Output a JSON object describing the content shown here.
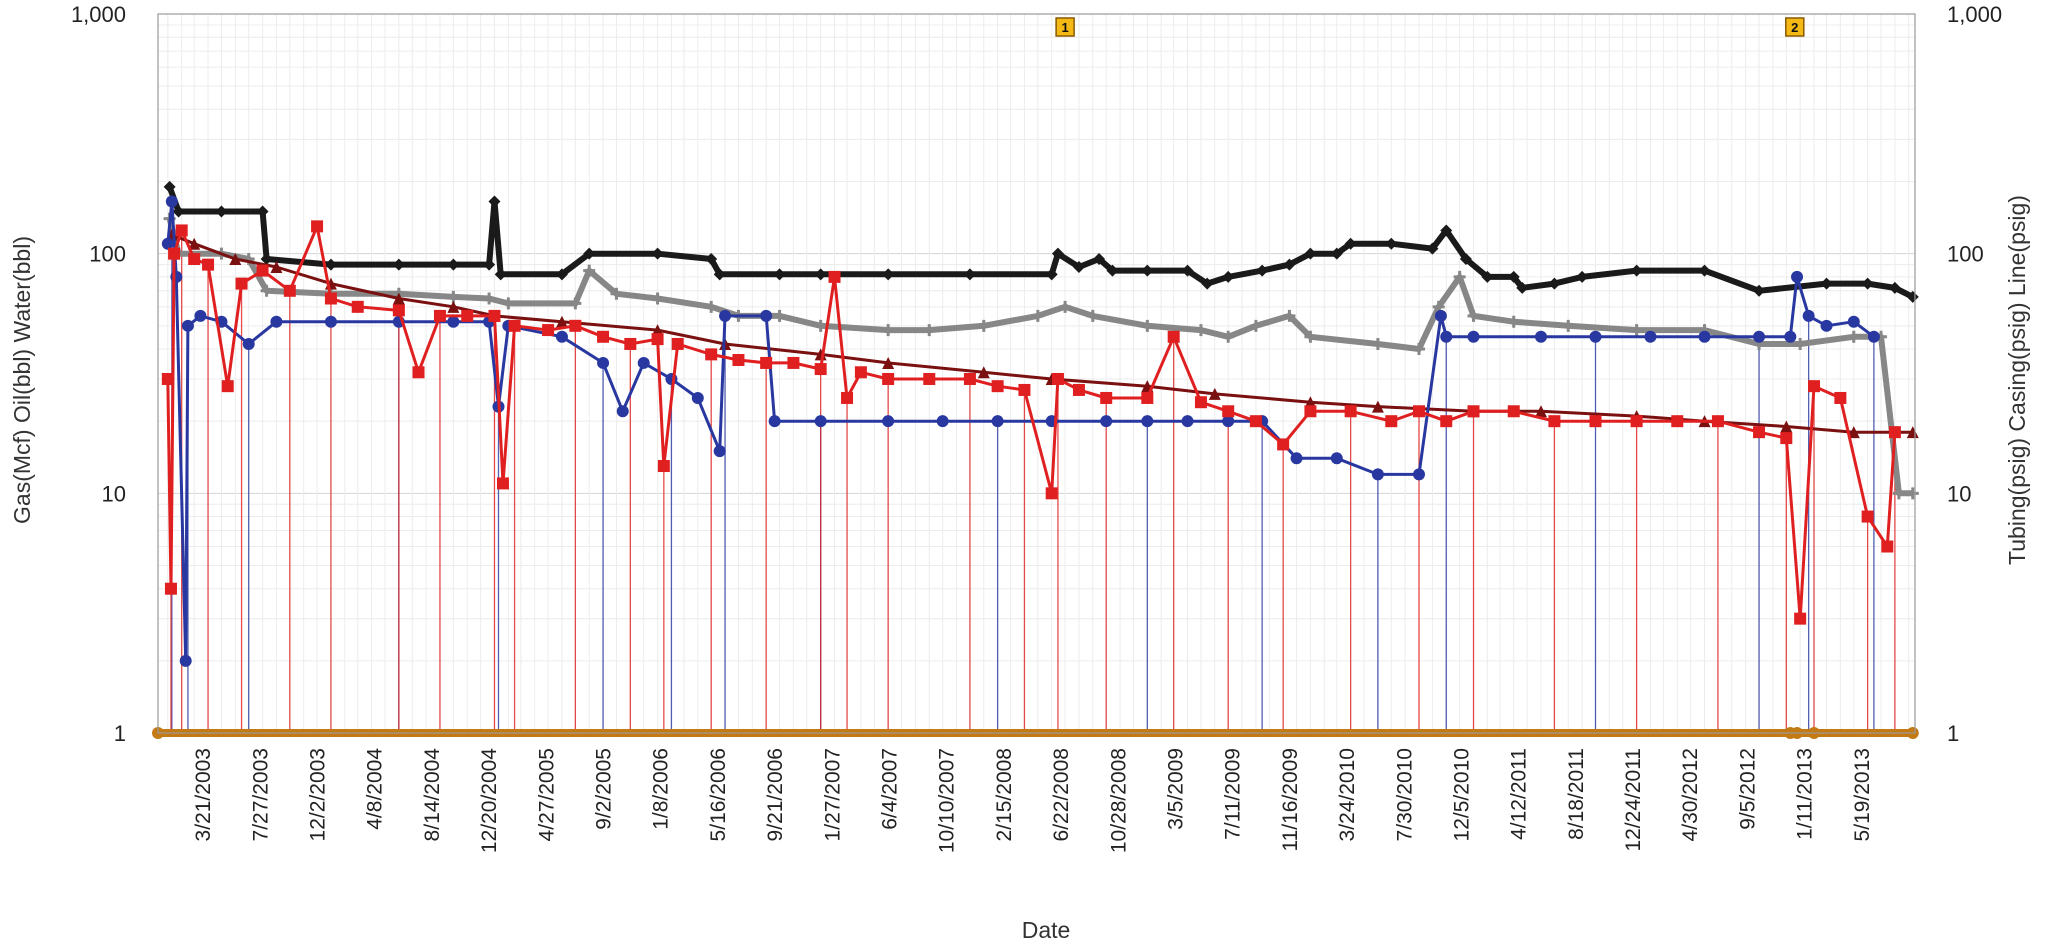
{
  "chart_data": {
    "type": "line",
    "title": "",
    "xlabel": "Date",
    "ylabel_left": "Gas(Mcf) Oil(bbl) Water(bbl)",
    "ylabel_right": "Tubing(psig) Casing(psig) Line(psig)",
    "yscale": "log",
    "ylim": [
      1,
      1000
    ],
    "xlim": [
      "2002-12-10",
      "2013-09-15"
    ],
    "grid": true,
    "y_ticks_left": [
      "1,000",
      "100",
      "10",
      "1"
    ],
    "y_ticks_right": [
      "1,000",
      "100",
      "10",
      "1"
    ],
    "x_ticks": [
      "3/21/2003",
      "7/27/2003",
      "12/2/2003",
      "4/8/2004",
      "8/14/2004",
      "12/20/2004",
      "4/27/2005",
      "9/2/2005",
      "1/8/2006",
      "5/16/2006",
      "9/21/2006",
      "1/27/2007",
      "6/4/2007",
      "10/10/2007",
      "2/15/2008",
      "6/22/2008",
      "10/28/2008",
      "3/5/2009",
      "7/11/2009",
      "11/16/2009",
      "3/24/2010",
      "7/30/2010",
      "12/5/2010",
      "4/12/2011",
      "8/18/2011",
      "12/24/2011",
      "4/30/2012",
      "9/5/2012",
      "1/11/2013",
      "5/19/2013"
    ],
    "annotations": [
      {
        "label": "1",
        "x": "2008-07-01"
      },
      {
        "label": "2",
        "x": "2012-12-20"
      }
    ],
    "series": [
      {
        "key": "tubing",
        "color": "#1a1a1a",
        "marker": "diamond",
        "points": [
          [
            "2003-01-05",
            190
          ],
          [
            "2003-01-25",
            150
          ],
          [
            "2003-05-01",
            150
          ],
          [
            "2003-08-01",
            150
          ],
          [
            "2003-08-10",
            95
          ],
          [
            "2004-01-01",
            90
          ],
          [
            "2004-06-01",
            90
          ],
          [
            "2004-10-01",
            90
          ],
          [
            "2004-12-20",
            90
          ],
          [
            "2005-01-01",
            165
          ],
          [
            "2005-01-15",
            82
          ],
          [
            "2005-06-01",
            82
          ],
          [
            "2005-08-01",
            100
          ],
          [
            "2006-01-01",
            100
          ],
          [
            "2006-05-01",
            95
          ],
          [
            "2006-05-20",
            82
          ],
          [
            "2006-10-01",
            82
          ],
          [
            "2007-01-01",
            82
          ],
          [
            "2007-06-01",
            82
          ],
          [
            "2007-12-01",
            82
          ],
          [
            "2008-06-01",
            82
          ],
          [
            "2008-06-15",
            100
          ],
          [
            "2008-08-01",
            88
          ],
          [
            "2008-09-15",
            95
          ],
          [
            "2008-10-15",
            85
          ],
          [
            "2009-01-01",
            85
          ],
          [
            "2009-04-01",
            85
          ],
          [
            "2009-05-15",
            75
          ],
          [
            "2009-07-01",
            80
          ],
          [
            "2009-09-15",
            85
          ],
          [
            "2009-11-15",
            90
          ],
          [
            "2010-01-01",
            100
          ],
          [
            "2010-03-01",
            100
          ],
          [
            "2010-04-01",
            110
          ],
          [
            "2010-07-01",
            110
          ],
          [
            "2010-10-01",
            105
          ],
          [
            "2010-11-01",
            125
          ],
          [
            "2010-12-15",
            95
          ],
          [
            "2011-02-01",
            80
          ],
          [
            "2011-04-01",
            80
          ],
          [
            "2011-04-20",
            72
          ],
          [
            "2011-07-01",
            75
          ],
          [
            "2011-09-01",
            80
          ],
          [
            "2012-01-01",
            85
          ],
          [
            "2012-06-01",
            85
          ],
          [
            "2012-10-01",
            70
          ],
          [
            "2013-03-01",
            75
          ],
          [
            "2013-06-01",
            75
          ],
          [
            "2013-08-01",
            72
          ],
          [
            "2013-09-10",
            66
          ]
        ]
      },
      {
        "key": "casing",
        "color": "#878787",
        "marker": "cross",
        "points": [
          [
            "2003-01-05",
            140
          ],
          [
            "2003-01-25",
            100
          ],
          [
            "2003-05-01",
            100
          ],
          [
            "2003-07-01",
            95
          ],
          [
            "2003-08-10",
            70
          ],
          [
            "2004-01-01",
            68
          ],
          [
            "2004-06-01",
            68
          ],
          [
            "2004-10-01",
            66
          ],
          [
            "2004-12-20",
            65
          ],
          [
            "2005-02-01",
            62
          ],
          [
            "2005-07-01",
            62
          ],
          [
            "2005-08-01",
            85
          ],
          [
            "2005-10-01",
            68
          ],
          [
            "2006-01-01",
            65
          ],
          [
            "2006-05-01",
            60
          ],
          [
            "2006-07-01",
            55
          ],
          [
            "2006-10-01",
            55
          ],
          [
            "2007-01-01",
            50
          ],
          [
            "2007-06-01",
            48
          ],
          [
            "2007-09-01",
            48
          ],
          [
            "2008-01-01",
            50
          ],
          [
            "2008-05-01",
            55
          ],
          [
            "2008-07-01",
            60
          ],
          [
            "2008-09-01",
            55
          ],
          [
            "2009-01-01",
            50
          ],
          [
            "2009-05-01",
            48
          ],
          [
            "2009-07-01",
            45
          ],
          [
            "2009-09-01",
            50
          ],
          [
            "2009-11-15",
            55
          ],
          [
            "2010-01-01",
            45
          ],
          [
            "2010-06-01",
            42
          ],
          [
            "2010-09-01",
            40
          ],
          [
            "2010-10-15",
            60
          ],
          [
            "2010-12-01",
            80
          ],
          [
            "2011-01-01",
            55
          ],
          [
            "2011-04-01",
            52
          ],
          [
            "2011-08-01",
            50
          ],
          [
            "2012-01-01",
            48
          ],
          [
            "2012-06-01",
            48
          ],
          [
            "2012-10-01",
            42
          ],
          [
            "2013-01-01",
            42
          ],
          [
            "2013-05-01",
            45
          ],
          [
            "2013-07-01",
            45
          ],
          [
            "2013-08-10",
            10
          ],
          [
            "2013-09-10",
            10
          ]
        ]
      },
      {
        "key": "line",
        "color": "#7a1010",
        "marker": "triangle",
        "points": [
          [
            "2003-01-10",
            120
          ],
          [
            "2003-03-01",
            110
          ],
          [
            "2003-06-01",
            95
          ],
          [
            "2003-09-01",
            88
          ],
          [
            "2004-01-01",
            75
          ],
          [
            "2004-06-01",
            65
          ],
          [
            "2004-10-01",
            60
          ],
          [
            "2005-01-01",
            55
          ],
          [
            "2005-06-01",
            52
          ],
          [
            "2006-01-01",
            48
          ],
          [
            "2006-06-01",
            42
          ],
          [
            "2007-01-01",
            38
          ],
          [
            "2007-06-01",
            35
          ],
          [
            "2008-01-01",
            32
          ],
          [
            "2008-06-01",
            30
          ],
          [
            "2009-01-01",
            28
          ],
          [
            "2009-06-01",
            26
          ],
          [
            "2010-01-01",
            24
          ],
          [
            "2010-06-01",
            23
          ],
          [
            "2011-01-01",
            22
          ],
          [
            "2011-06-01",
            22
          ],
          [
            "2012-01-01",
            21
          ],
          [
            "2012-06-01",
            20
          ],
          [
            "2012-12-01",
            19
          ],
          [
            "2013-05-01",
            18
          ],
          [
            "2013-09-10",
            18
          ]
        ]
      },
      {
        "key": "water",
        "color": "#c47a14",
        "marker": "circle",
        "points": [
          [
            "2002-12-10",
            1
          ],
          [
            "2012-12-10",
            1
          ],
          [
            "2012-12-25",
            1
          ],
          [
            "2013-02-01",
            1
          ],
          [
            "2013-09-10",
            1
          ]
        ]
      },
      {
        "key": "oil",
        "color": "#2838a0",
        "marker": "circle",
        "points": [
          [
            "2003-01-01",
            110
          ],
          [
            "2003-01-10",
            165
          ],
          [
            "2003-01-20",
            80
          ],
          [
            "2003-02-10",
            2
          ],
          [
            "2003-02-15",
            50
          ],
          [
            "2003-03-15",
            55
          ],
          [
            "2003-05-01",
            52
          ],
          [
            "2003-07-01",
            42
          ],
          [
            "2003-09-01",
            52
          ],
          [
            "2004-01-01",
            52
          ],
          [
            "2004-06-01",
            52
          ],
          [
            "2004-10-01",
            52
          ],
          [
            "2004-12-20",
            52
          ],
          [
            "2005-01-10",
            23
          ],
          [
            "2005-02-01",
            50
          ],
          [
            "2005-06-01",
            45
          ],
          [
            "2005-09-01",
            35
          ],
          [
            "2005-10-15",
            22
          ],
          [
            "2005-12-01",
            35
          ],
          [
            "2006-02-01",
            30
          ],
          [
            "2006-04-01",
            25
          ],
          [
            "2006-05-20",
            15
          ],
          [
            "2006-06-01",
            55
          ],
          [
            "2006-09-01",
            55
          ],
          [
            "2006-09-20",
            20
          ],
          [
            "2007-01-01",
            20
          ],
          [
            "2007-06-01",
            20
          ],
          [
            "2007-10-01",
            20
          ],
          [
            "2008-02-01",
            20
          ],
          [
            "2008-06-01",
            20
          ],
          [
            "2008-10-01",
            20
          ],
          [
            "2009-01-01",
            20
          ],
          [
            "2009-04-01",
            20
          ],
          [
            "2009-07-01",
            20
          ],
          [
            "2009-09-15",
            20
          ],
          [
            "2009-12-01",
            14
          ],
          [
            "2010-03-01",
            14
          ],
          [
            "2010-06-01",
            12
          ],
          [
            "2010-09-01",
            12
          ],
          [
            "2010-10-20",
            55
          ],
          [
            "2010-11-01",
            45
          ],
          [
            "2011-01-01",
            45
          ],
          [
            "2011-06-01",
            45
          ],
          [
            "2011-10-01",
            45
          ],
          [
            "2012-02-01",
            45
          ],
          [
            "2012-06-01",
            45
          ],
          [
            "2012-10-01",
            45
          ],
          [
            "2012-12-10",
            45
          ],
          [
            "2012-12-25",
            80
          ],
          [
            "2013-01-20",
            55
          ],
          [
            "2013-03-01",
            50
          ],
          [
            "2013-05-01",
            52
          ],
          [
            "2013-06-15",
            45
          ]
        ]
      },
      {
        "key": "gas",
        "color": "#e02020",
        "marker": "square",
        "points": [
          [
            "2003-01-01",
            30
          ],
          [
            "2003-01-08",
            4
          ],
          [
            "2003-01-15",
            100
          ],
          [
            "2003-02-01",
            125
          ],
          [
            "2003-03-01",
            95
          ],
          [
            "2003-04-01",
            90
          ],
          [
            "2003-05-15",
            28
          ],
          [
            "2003-06-15",
            75
          ],
          [
            "2003-08-01",
            85
          ],
          [
            "2003-10-01",
            70
          ],
          [
            "2003-12-01",
            130
          ],
          [
            "2004-01-01",
            65
          ],
          [
            "2004-03-01",
            60
          ],
          [
            "2004-06-01",
            58
          ],
          [
            "2004-07-15",
            32
          ],
          [
            "2004-09-01",
            55
          ],
          [
            "2004-11-01",
            55
          ],
          [
            "2005-01-01",
            55
          ],
          [
            "2005-01-20",
            11
          ],
          [
            "2005-02-15",
            50
          ],
          [
            "2005-05-01",
            48
          ],
          [
            "2005-07-01",
            50
          ],
          [
            "2005-09-01",
            45
          ],
          [
            "2005-11-01",
            42
          ],
          [
            "2006-01-01",
            44
          ],
          [
            "2006-01-15",
            13
          ],
          [
            "2006-02-15",
            42
          ],
          [
            "2006-05-01",
            38
          ],
          [
            "2006-07-01",
            36
          ],
          [
            "2006-09-01",
            35
          ],
          [
            "2006-11-01",
            35
          ],
          [
            "2007-01-01",
            33
          ],
          [
            "2007-02-01",
            80
          ],
          [
            "2007-03-01",
            25
          ],
          [
            "2007-04-01",
            32
          ],
          [
            "2007-06-01",
            30
          ],
          [
            "2007-09-01",
            30
          ],
          [
            "2007-12-01",
            30
          ],
          [
            "2008-02-01",
            28
          ],
          [
            "2008-04-01",
            27
          ],
          [
            "2008-06-01",
            10
          ],
          [
            "2008-06-15",
            30
          ],
          [
            "2008-08-01",
            27
          ],
          [
            "2008-10-01",
            25
          ],
          [
            "2009-01-01",
            25
          ],
          [
            "2009-03-01",
            45
          ],
          [
            "2009-05-01",
            24
          ],
          [
            "2009-07-01",
            22
          ],
          [
            "2009-09-01",
            20
          ],
          [
            "2009-11-01",
            16
          ],
          [
            "2010-01-01",
            22
          ],
          [
            "2010-04-01",
            22
          ],
          [
            "2010-07-01",
            20
          ],
          [
            "2010-09-01",
            22
          ],
          [
            "2010-11-01",
            20
          ],
          [
            "2011-01-01",
            22
          ],
          [
            "2011-04-01",
            22
          ],
          [
            "2011-07-01",
            20
          ],
          [
            "2011-10-01",
            20
          ],
          [
            "2012-01-01",
            20
          ],
          [
            "2012-04-01",
            20
          ],
          [
            "2012-07-01",
            20
          ],
          [
            "2012-10-01",
            18
          ],
          [
            "2012-12-01",
            17
          ],
          [
            "2013-01-01",
            3
          ],
          [
            "2013-02-01",
            28
          ],
          [
            "2013-04-01",
            25
          ],
          [
            "2013-06-01",
            8
          ],
          [
            "2013-07-15",
            6
          ],
          [
            "2013-08-01",
            18
          ]
        ]
      }
    ]
  }
}
